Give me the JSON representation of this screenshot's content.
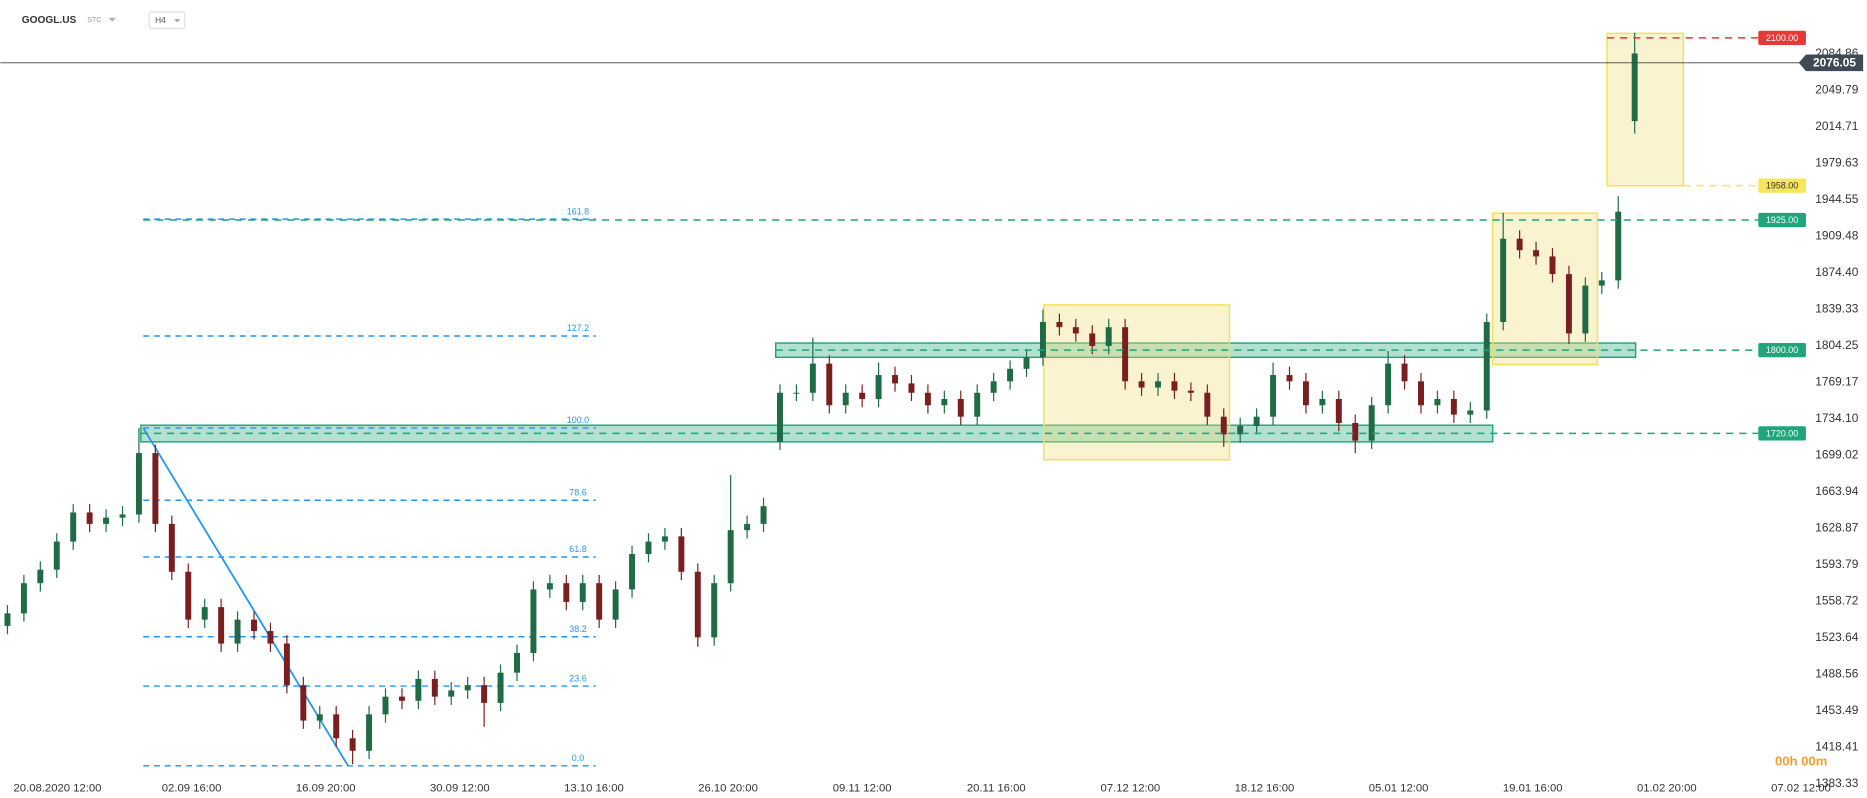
{
  "header": {
    "symbol": "GOOGL.US",
    "market": "STC",
    "interval": "H4"
  },
  "chart_data": {
    "type": "candlestick",
    "up_color": "#1e6b45",
    "down_color": "#7a1f1f",
    "open": [
      1535,
      1547,
      1576,
      1589,
      1616,
      1644,
      1633,
      1639,
      1642,
      1701,
      1633,
      1587,
      1541,
      1553,
      1518,
      1541,
      1530,
      1518,
      1478,
      1444,
      1450,
      1427,
      1415,
      1450,
      1467,
      1463,
      1484,
      1467,
      1473,
      1478,
      1461,
      1490,
      1509,
      1570,
      1576,
      1558,
      1576,
      1541,
      1570,
      1604,
      1616,
      1621,
      1587,
      1524,
      1576,
      1627,
      1633,
      1712,
      1759,
      1759,
      1787,
      1747,
      1759,
      1753,
      1776,
      1768,
      1759,
      1747,
      1753,
      1736,
      1759,
      1770,
      1782,
      1793,
      1827,
      1822,
      1816,
      1804,
      1822,
      1770,
      1764,
      1770,
      1761,
      1759,
      1736,
      1719,
      1727,
      1736,
      1776,
      1770,
      1747,
      1753,
      1730,
      1713,
      1747,
      1787,
      1770,
      1747,
      1753,
      1738,
      1742,
      1827,
      1907,
      1896,
      1890,
      1873,
      1816,
      1862,
      1867,
      2020
    ],
    "high": [
      1555,
      1584,
      1597,
      1624,
      1652,
      1652,
      1647,
      1650,
      1725,
      1709,
      1641,
      1595,
      1561,
      1561,
      1549,
      1549,
      1538,
      1526,
      1486,
      1458,
      1458,
      1435,
      1458,
      1475,
      1475,
      1492,
      1492,
      1481,
      1486,
      1486,
      1498,
      1517,
      1578,
      1584,
      1584,
      1584,
      1584,
      1578,
      1612,
      1624,
      1629,
      1629,
      1595,
      1584,
      1680,
      1641,
      1658,
      1767,
      1767,
      1812,
      1795,
      1767,
      1767,
      1788,
      1784,
      1776,
      1767,
      1761,
      1761,
      1767,
      1778,
      1790,
      1801,
      1839,
      1835,
      1830,
      1824,
      1830,
      1830,
      1778,
      1778,
      1778,
      1769,
      1767,
      1744,
      1735,
      1744,
      1788,
      1784,
      1778,
      1761,
      1761,
      1738,
      1755,
      1799,
      1795,
      1778,
      1761,
      1761,
      1750,
      1835,
      1932,
      1915,
      1904,
      1898,
      1881,
      1870,
      1875,
      1948,
      2105
    ],
    "low": [
      1527,
      1539,
      1568,
      1581,
      1608,
      1625,
      1625,
      1631,
      1634,
      1625,
      1579,
      1533,
      1533,
      1510,
      1510,
      1522,
      1510,
      1470,
      1436,
      1436,
      1419,
      1402,
      1407,
      1442,
      1455,
      1455,
      1459,
      1459,
      1465,
      1438,
      1453,
      1482,
      1501,
      1562,
      1550,
      1550,
      1533,
      1533,
      1562,
      1596,
      1608,
      1579,
      1515,
      1516,
      1568,
      1619,
      1625,
      1704,
      1751,
      1751,
      1739,
      1739,
      1745,
      1745,
      1760,
      1751,
      1739,
      1739,
      1728,
      1728,
      1751,
      1762,
      1774,
      1785,
      1814,
      1808,
      1796,
      1796,
      1762,
      1756,
      1756,
      1753,
      1751,
      1728,
      1707,
      1711,
      1719,
      1728,
      1762,
      1739,
      1739,
      1722,
      1701,
      1705,
      1739,
      1762,
      1739,
      1739,
      1730,
      1730,
      1734,
      1819,
      1888,
      1882,
      1865,
      1806,
      1808,
      1854,
      1859,
      2008
    ],
    "close": [
      1547,
      1576,
      1589,
      1616,
      1644,
      1633,
      1639,
      1642,
      1701,
      1633,
      1587,
      1541,
      1553,
      1518,
      1541,
      1530,
      1518,
      1478,
      1444,
      1450,
      1427,
      1415,
      1450,
      1467,
      1463,
      1484,
      1467,
      1473,
      1478,
      1461,
      1490,
      1509,
      1570,
      1576,
      1558,
      1576,
      1541,
      1570,
      1604,
      1616,
      1621,
      1587,
      1524,
      1576,
      1627,
      1633,
      1650,
      1759,
      1759,
      1787,
      1747,
      1759,
      1753,
      1776,
      1768,
      1759,
      1747,
      1753,
      1736,
      1759,
      1770,
      1782,
      1793,
      1827,
      1822,
      1816,
      1804,
      1822,
      1770,
      1764,
      1770,
      1761,
      1759,
      1736,
      1719,
      1727,
      1736,
      1776,
      1770,
      1747,
      1753,
      1730,
      1713,
      1747,
      1787,
      1770,
      1747,
      1753,
      1738,
      1742,
      1827,
      1907,
      1896,
      1890,
      1873,
      1816,
      1862,
      1867,
      1933,
      2085
    ],
    "x_labels": [
      "20.08.2020 12:00",
      "02.09 16:00",
      "16.09 20:00",
      "30.09 12:00",
      "13.10 16:00",
      "26.10 20:00",
      "09.11 12:00",
      "20.11 16:00",
      "07.12 12:00",
      "18.12 16:00",
      "05.01 12:00",
      "19.01 16:00",
      "01.02 20:00",
      "07.02 12:00"
    ],
    "ylim": [
      1369.6,
      2136.4
    ],
    "yticks": [
      1383.33,
      1418.41,
      1453.49,
      1488.56,
      1523.64,
      1558.72,
      1593.79,
      1628.87,
      1663.94,
      1699.02,
      {
        "value": 1734.1,
        "label": "1734.10"
      },
      1769.17,
      1804.25,
      1839.33,
      {
        "value": 1874.4,
        "label": "1874.40"
      },
      1909.48,
      1944.55,
      1979.63,
      2014.71,
      2049.79,
      2084.86
    ],
    "current_price": 2076.05,
    "levels": [
      {
        "value": 2100,
        "label": "2100.00",
        "color": "#e53935",
        "text_color": "#ffffff"
      },
      {
        "value": 1958,
        "label": "1958.00",
        "color": "#f7e55a",
        "text_color": "#333333"
      },
      {
        "value": 1925,
        "label": "1925.00",
        "color": "#1fa57a",
        "text_color": "#ffffff"
      },
      {
        "value": 1800,
        "label": "1800.00",
        "color": "#1fa57a",
        "text_color": "#ffffff"
      },
      {
        "value": 1720,
        "label": "1720.00",
        "color": "#1fa57a",
        "text_color": "#ffffff"
      }
    ],
    "fibonacci": {
      "low": 1400.5,
      "high": 1725.2,
      "color": "#2196f3",
      "levels": [
        {
          "value": 0,
          "label": "0.0"
        },
        23.6,
        38.2,
        61.8,
        78.6,
        {
          "value": 100,
          "label": "100.0"
        },
        127.2,
        161.8
      ]
    },
    "timer": "00h 00m"
  }
}
